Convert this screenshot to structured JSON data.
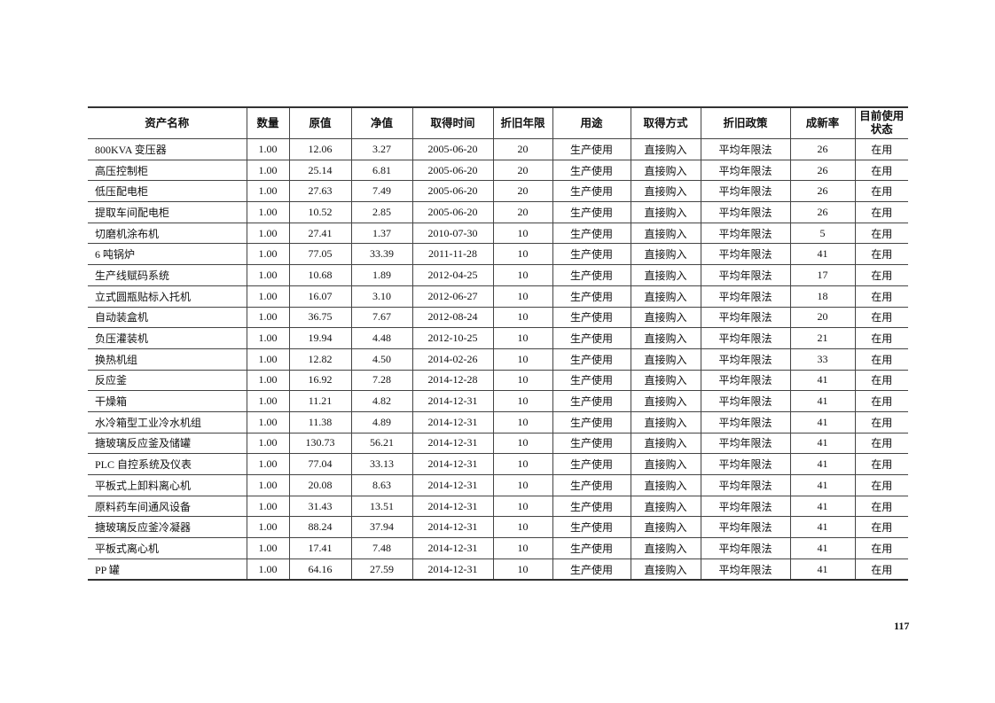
{
  "table": {
    "headers": [
      "资产名称",
      "数量",
      "原值",
      "净值",
      "取得时间",
      "折旧年限",
      "用途",
      "取得方式",
      "折旧政策",
      "成新率",
      "目前使用状态"
    ],
    "rows": [
      [
        "800KVA 变压器",
        "1.00",
        "12.06",
        "3.27",
        "2005-06-20",
        "20",
        "生产使用",
        "直接购入",
        "平均年限法",
        "26",
        "在用"
      ],
      [
        "高压控制柜",
        "1.00",
        "25.14",
        "6.81",
        "2005-06-20",
        "20",
        "生产使用",
        "直接购入",
        "平均年限法",
        "26",
        "在用"
      ],
      [
        "低压配电柜",
        "1.00",
        "27.63",
        "7.49",
        "2005-06-20",
        "20",
        "生产使用",
        "直接购入",
        "平均年限法",
        "26",
        "在用"
      ],
      [
        "提取车间配电柜",
        "1.00",
        "10.52",
        "2.85",
        "2005-06-20",
        "20",
        "生产使用",
        "直接购入",
        "平均年限法",
        "26",
        "在用"
      ],
      [
        "切磨机涂布机",
        "1.00",
        "27.41",
        "1.37",
        "2010-07-30",
        "10",
        "生产使用",
        "直接购入",
        "平均年限法",
        "5",
        "在用"
      ],
      [
        "6 吨锅炉",
        "1.00",
        "77.05",
        "33.39",
        "2011-11-28",
        "10",
        "生产使用",
        "直接购入",
        "平均年限法",
        "41",
        "在用"
      ],
      [
        "生产线赋码系统",
        "1.00",
        "10.68",
        "1.89",
        "2012-04-25",
        "10",
        "生产使用",
        "直接购入",
        "平均年限法",
        "17",
        "在用"
      ],
      [
        "立式圆瓶贴标入托机",
        "1.00",
        "16.07",
        "3.10",
        "2012-06-27",
        "10",
        "生产使用",
        "直接购入",
        "平均年限法",
        "18",
        "在用"
      ],
      [
        "自动装盒机",
        "1.00",
        "36.75",
        "7.67",
        "2012-08-24",
        "10",
        "生产使用",
        "直接购入",
        "平均年限法",
        "20",
        "在用"
      ],
      [
        "负压灌装机",
        "1.00",
        "19.94",
        "4.48",
        "2012-10-25",
        "10",
        "生产使用",
        "直接购入",
        "平均年限法",
        "21",
        "在用"
      ],
      [
        "换热机组",
        "1.00",
        "12.82",
        "4.50",
        "2014-02-26",
        "10",
        "生产使用",
        "直接购入",
        "平均年限法",
        "33",
        "在用"
      ],
      [
        "反应釜",
        "1.00",
        "16.92",
        "7.28",
        "2014-12-28",
        "10",
        "生产使用",
        "直接购入",
        "平均年限法",
        "41",
        "在用"
      ],
      [
        "干燥箱",
        "1.00",
        "11.21",
        "4.82",
        "2014-12-31",
        "10",
        "生产使用",
        "直接购入",
        "平均年限法",
        "41",
        "在用"
      ],
      [
        "水冷箱型工业冷水机组",
        "1.00",
        "11.38",
        "4.89",
        "2014-12-31",
        "10",
        "生产使用",
        "直接购入",
        "平均年限法",
        "41",
        "在用"
      ],
      [
        "搪玻璃反应釜及储罐",
        "1.00",
        "130.73",
        "56.21",
        "2014-12-31",
        "10",
        "生产使用",
        "直接购入",
        "平均年限法",
        "41",
        "在用"
      ],
      [
        "PLC 自控系统及仪表",
        "1.00",
        "77.04",
        "33.13",
        "2014-12-31",
        "10",
        "生产使用",
        "直接购入",
        "平均年限法",
        "41",
        "在用"
      ],
      [
        "平板式上卸料离心机",
        "1.00",
        "20.08",
        "8.63",
        "2014-12-31",
        "10",
        "生产使用",
        "直接购入",
        "平均年限法",
        "41",
        "在用"
      ],
      [
        "原料药车间通风设备",
        "1.00",
        "31.43",
        "13.51",
        "2014-12-31",
        "10",
        "生产使用",
        "直接购入",
        "平均年限法",
        "41",
        "在用"
      ],
      [
        "搪玻璃反应釜冷凝器",
        "1.00",
        "88.24",
        "37.94",
        "2014-12-31",
        "10",
        "生产使用",
        "直接购入",
        "平均年限法",
        "41",
        "在用"
      ],
      [
        "平板式离心机",
        "1.00",
        "17.41",
        "7.48",
        "2014-12-31",
        "10",
        "生产使用",
        "直接购入",
        "平均年限法",
        "41",
        "在用"
      ],
      [
        "PP 罐",
        "1.00",
        "64.16",
        "27.59",
        "2014-12-31",
        "10",
        "生产使用",
        "直接购入",
        "平均年限法",
        "41",
        "在用"
      ]
    ]
  },
  "page_number": "117"
}
